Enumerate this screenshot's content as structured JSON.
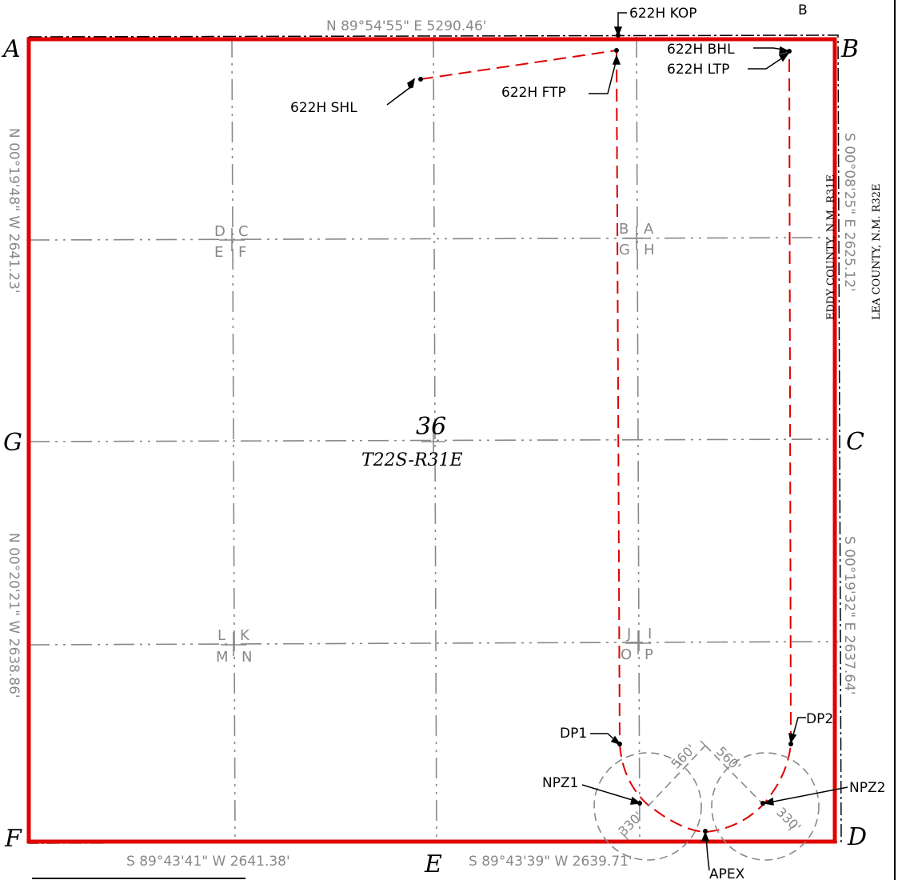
{
  "map": {
    "section": "36",
    "township_range": "T22S-R31E",
    "corners": {
      "a": "A",
      "b": "B",
      "c": "C",
      "d": "D",
      "e": "E",
      "f": "F",
      "g": "G"
    },
    "bearings": {
      "north": "N 89°54'55\" E   5290.46'",
      "west_upper": "N 00°19'48\" W   2641.23'",
      "west_lower": "N 00°20'21\" W   2638.86'",
      "east_upper": "S 00°08'25\" E   2625.12'",
      "east_lower": "S 00°19'32\" E   2637.64'",
      "south_left": "S 89°43'41\" W   2641.38'",
      "south_right": "S 89°43'39\" W   2639.71'"
    },
    "counties": {
      "eddy": "EDDY COUNTY, N.M.   R31E",
      "lea": "LEA COUNTY, N.M.   R32E"
    },
    "well_points": {
      "shl": "622H SHL",
      "ftp": "622H FTP",
      "kop": "622H KOP",
      "bhl": "622H BHL",
      "ltp": "622H LTP",
      "dp1": "DP1",
      "dp2": "DP2",
      "npz1": "NPZ1",
      "npz2": "NPZ2",
      "apex": "APEX"
    },
    "tract_letters": {
      "d": "D",
      "c": "C",
      "e": "E",
      "f": "F",
      "b": "B",
      "a": "A",
      "g": "G",
      "h": "H",
      "l": "L",
      "k": "K",
      "m": "M",
      "n": "N",
      "j": "J",
      "i": "I",
      "o": "O",
      "p": "P"
    },
    "dimensions": {
      "d560a": "560'",
      "d560b": "560'",
      "d330a": "330'",
      "d330b": "330'"
    },
    "stray_mark": "B",
    "colors": {
      "boundary": "#e00000",
      "wellpath": "#e00000",
      "gridline": "#888888",
      "ink": "#000000"
    }
  }
}
